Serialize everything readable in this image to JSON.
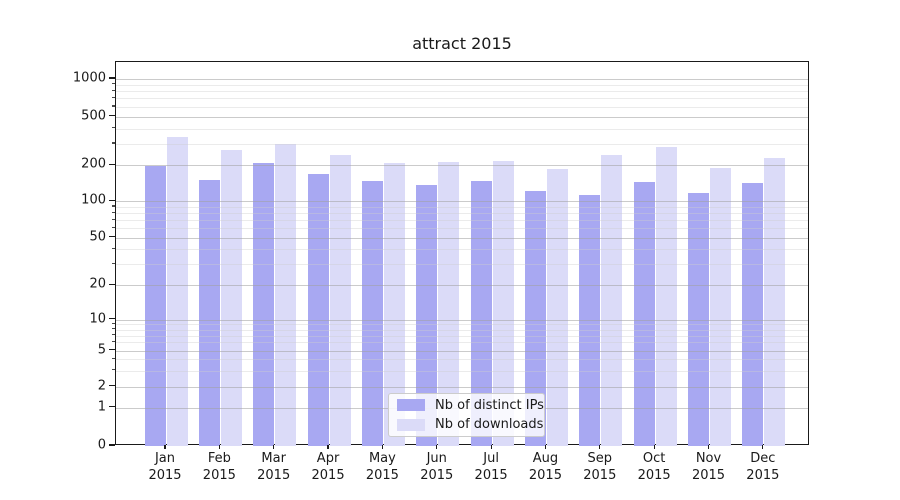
{
  "chart_data": {
    "type": "bar",
    "title": "attract 2015",
    "categories": [
      "Jan 2015",
      "Feb 2015",
      "Mar 2015",
      "Apr 2015",
      "May 2015",
      "Jun 2015",
      "Jul 2015",
      "Aug 2015",
      "Sep 2015",
      "Oct 2015",
      "Nov 2015",
      "Dec 2015"
    ],
    "series": [
      {
        "name": "Nb of distinct IPs",
        "color": "#a8a8f2",
        "values": [
          196,
          150,
          208,
          170,
          148,
          136,
          148,
          122,
          113,
          146,
          118,
          142
        ]
      },
      {
        "name": "Nb of downloads",
        "color": "#dbdbf8",
        "values": [
          345,
          266,
          298,
          242,
          210,
          214,
          219,
          186,
          242,
          284,
          191,
          229
        ]
      }
    ],
    "xlabel": "",
    "ylabel": "",
    "yscale": "symlog",
    "yticks": [
      0,
      1,
      2,
      5,
      10,
      20,
      50,
      100,
      200,
      500,
      1000
    ],
    "yticks_minor": [
      3,
      4,
      6,
      7,
      8,
      9,
      30,
      40,
      60,
      70,
      80,
      90,
      300,
      400,
      600,
      700,
      800,
      900
    ],
    "ylim": [
      0,
      1000
    ],
    "grid": true,
    "grid_above_bars": true,
    "legend_position": "lower center"
  }
}
